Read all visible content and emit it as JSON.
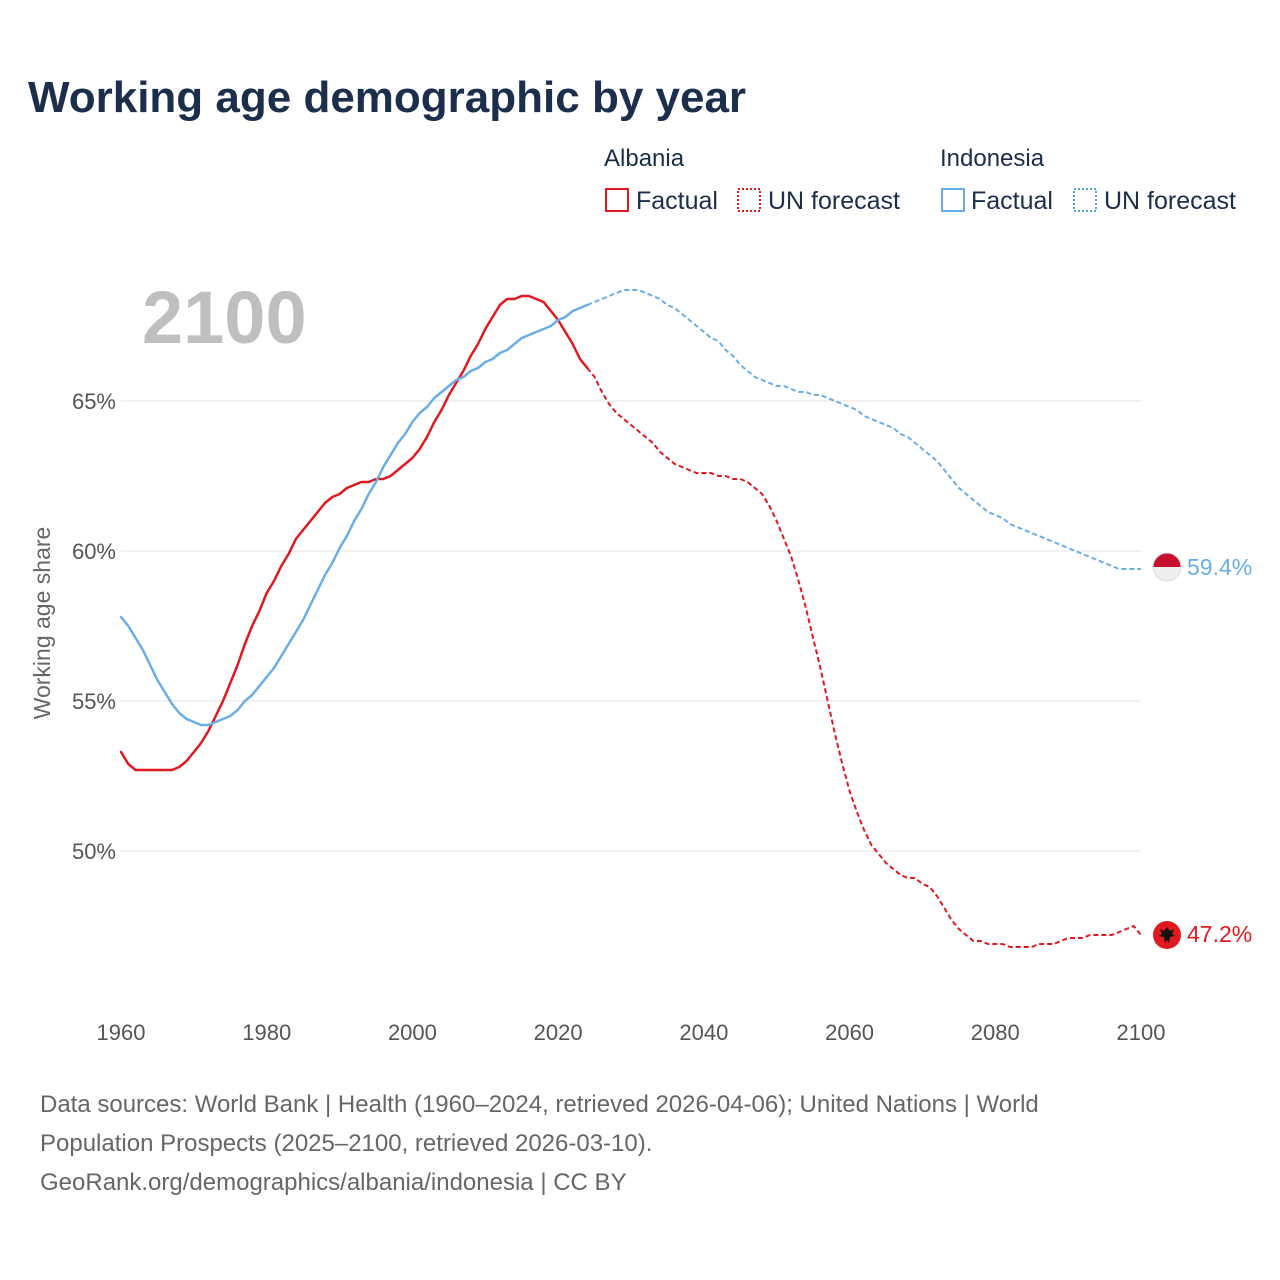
{
  "chart_data": {
    "type": "line",
    "title": "Working age demographic by year",
    "year_label": "2100",
    "xlabel": "",
    "ylabel": "Working age share",
    "xlim": [
      1960,
      2100
    ],
    "ylim": [
      45,
      70
    ],
    "x_ticks": [
      1960,
      1980,
      2000,
      2020,
      2040,
      2060,
      2080,
      2100
    ],
    "x_tick_labels": [
      "1960",
      "1980",
      "2000",
      "2020",
      "2040",
      "2060",
      "2080",
      "2100"
    ],
    "y_ticks": [
      50,
      55,
      60,
      65
    ],
    "y_tick_labels": [
      "50%",
      "55%",
      "60%",
      "65%"
    ],
    "legend": {
      "groups": [
        {
          "name": "Albania",
          "entries": [
            {
              "label": "Factual",
              "style": "solid"
            },
            {
              "label": "UN forecast",
              "style": "dotted"
            }
          ]
        },
        {
          "name": "Indonesia",
          "entries": [
            {
              "label": "Factual",
              "style": "solid"
            },
            {
              "label": "UN forecast",
              "style": "dotted"
            }
          ]
        }
      ]
    },
    "series": [
      {
        "name": "Albania",
        "color": "#e0191f",
        "end_label": "47.2%",
        "factual": {
          "x": [
            1960,
            1961,
            1962,
            1963,
            1964,
            1965,
            1966,
            1967,
            1968,
            1969,
            1970,
            1971,
            1972,
            1973,
            1974,
            1975,
            1976,
            1977,
            1978,
            1979,
            1980,
            1981,
            1982,
            1983,
            1984,
            1985,
            1986,
            1987,
            1988,
            1989,
            1990,
            1991,
            1992,
            1993,
            1994,
            1995,
            1996,
            1997,
            1998,
            1999,
            2000,
            2001,
            2002,
            2003,
            2004,
            2005,
            2006,
            2007,
            2008,
            2009,
            2010,
            2011,
            2012,
            2013,
            2014,
            2015,
            2016,
            2017,
            2018,
            2019,
            2020,
            2021,
            2022,
            2023,
            2024
          ],
          "y": [
            53.3,
            52.9,
            52.7,
            52.7,
            52.7,
            52.7,
            52.7,
            52.7,
            52.8,
            53.0,
            53.3,
            53.6,
            54.0,
            54.5,
            55.0,
            55.6,
            56.2,
            56.9,
            57.5,
            58.0,
            58.6,
            59.0,
            59.5,
            59.9,
            60.4,
            60.7,
            61.0,
            61.3,
            61.6,
            61.8,
            61.9,
            62.1,
            62.2,
            62.3,
            62.3,
            62.4,
            62.4,
            62.5,
            62.7,
            62.9,
            63.1,
            63.4,
            63.8,
            64.3,
            64.7,
            65.2,
            65.6,
            66.0,
            66.5,
            66.9,
            67.4,
            67.8,
            68.2,
            68.4,
            68.4,
            68.5,
            68.5,
            68.4,
            68.3,
            68.0,
            67.7,
            67.3,
            66.9,
            66.4,
            66.1
          ]
        },
        "forecast": {
          "x": [
            2024,
            2025,
            2026,
            2027,
            2028,
            2029,
            2030,
            2031,
            2032,
            2033,
            2034,
            2035,
            2036,
            2037,
            2038,
            2039,
            2040,
            2041,
            2042,
            2043,
            2044,
            2045,
            2046,
            2047,
            2048,
            2049,
            2050,
            2051,
            2052,
            2053,
            2054,
            2055,
            2056,
            2057,
            2058,
            2059,
            2060,
            2061,
            2062,
            2063,
            2064,
            2065,
            2066,
            2067,
            2068,
            2069,
            2070,
            2071,
            2072,
            2073,
            2074,
            2075,
            2076,
            2077,
            2078,
            2079,
            2080,
            2081,
            2082,
            2083,
            2084,
            2085,
            2086,
            2087,
            2088,
            2089,
            2090,
            2091,
            2092,
            2093,
            2094,
            2095,
            2096,
            2097,
            2098,
            2099,
            2100
          ],
          "y": [
            66.1,
            65.8,
            65.3,
            64.9,
            64.6,
            64.4,
            64.2,
            64.0,
            63.8,
            63.6,
            63.3,
            63.1,
            62.9,
            62.8,
            62.7,
            62.6,
            62.6,
            62.6,
            62.5,
            62.5,
            62.4,
            62.4,
            62.3,
            62.1,
            61.9,
            61.5,
            61.0,
            60.4,
            59.8,
            59.0,
            58.1,
            57.1,
            56.1,
            55.0,
            53.9,
            52.9,
            52.0,
            51.3,
            50.7,
            50.2,
            49.9,
            49.6,
            49.4,
            49.2,
            49.1,
            49.1,
            48.9,
            48.8,
            48.5,
            48.1,
            47.7,
            47.4,
            47.2,
            47.0,
            47.0,
            46.9,
            46.9,
            46.9,
            46.8,
            46.8,
            46.8,
            46.8,
            46.9,
            46.9,
            46.9,
            47.0,
            47.1,
            47.1,
            47.1,
            47.2,
            47.2,
            47.2,
            47.2,
            47.3,
            47.4,
            47.5,
            47.2
          ]
        }
      },
      {
        "name": "Indonesia",
        "color": "#6aaee6",
        "end_label": "59.4%",
        "factual": {
          "x": [
            1960,
            1961,
            1962,
            1963,
            1964,
            1965,
            1966,
            1967,
            1968,
            1969,
            1970,
            1971,
            1972,
            1973,
            1974,
            1975,
            1976,
            1977,
            1978,
            1979,
            1980,
            1981,
            1982,
            1983,
            1984,
            1985,
            1986,
            1987,
            1988,
            1989,
            1990,
            1991,
            1992,
            1993,
            1994,
            1995,
            1996,
            1997,
            1998,
            1999,
            2000,
            2001,
            2002,
            2003,
            2004,
            2005,
            2006,
            2007,
            2008,
            2009,
            2010,
            2011,
            2012,
            2013,
            2014,
            2015,
            2016,
            2017,
            2018,
            2019,
            2020,
            2021,
            2022,
            2023,
            2024
          ],
          "y": [
            57.8,
            57.5,
            57.1,
            56.7,
            56.2,
            55.7,
            55.3,
            54.9,
            54.6,
            54.4,
            54.3,
            54.2,
            54.2,
            54.3,
            54.4,
            54.5,
            54.7,
            55.0,
            55.2,
            55.5,
            55.8,
            56.1,
            56.5,
            56.9,
            57.3,
            57.7,
            58.2,
            58.7,
            59.2,
            59.6,
            60.1,
            60.5,
            61.0,
            61.4,
            61.9,
            62.3,
            62.8,
            63.2,
            63.6,
            63.9,
            64.3,
            64.6,
            64.8,
            65.1,
            65.3,
            65.5,
            65.7,
            65.8,
            66.0,
            66.1,
            66.3,
            66.4,
            66.6,
            66.7,
            66.9,
            67.1,
            67.2,
            67.3,
            67.4,
            67.5,
            67.7,
            67.8,
            68.0,
            68.1,
            68.2
          ]
        },
        "forecast": {
          "x": [
            2024,
            2025,
            2026,
            2027,
            2028,
            2029,
            2030,
            2031,
            2032,
            2033,
            2034,
            2035,
            2036,
            2037,
            2038,
            2039,
            2040,
            2041,
            2042,
            2043,
            2044,
            2045,
            2046,
            2047,
            2048,
            2049,
            2050,
            2051,
            2052,
            2053,
            2054,
            2055,
            2056,
            2057,
            2058,
            2059,
            2060,
            2061,
            2062,
            2063,
            2064,
            2065,
            2066,
            2067,
            2068,
            2069,
            2070,
            2071,
            2072,
            2073,
            2074,
            2075,
            2076,
            2077,
            2078,
            2079,
            2080,
            2081,
            2082,
            2083,
            2084,
            2085,
            2086,
            2087,
            2088,
            2089,
            2090,
            2091,
            2092,
            2093,
            2094,
            2095,
            2096,
            2097,
            2098,
            2099,
            2100
          ],
          "y": [
            68.2,
            68.3,
            68.4,
            68.5,
            68.6,
            68.7,
            68.7,
            68.7,
            68.6,
            68.5,
            68.4,
            68.2,
            68.1,
            67.9,
            67.7,
            67.5,
            67.3,
            67.1,
            67.0,
            66.7,
            66.5,
            66.2,
            66.0,
            65.8,
            65.7,
            65.6,
            65.5,
            65.5,
            65.4,
            65.3,
            65.3,
            65.2,
            65.2,
            65.1,
            65.0,
            64.9,
            64.8,
            64.7,
            64.5,
            64.4,
            64.3,
            64.2,
            64.1,
            63.9,
            63.8,
            63.6,
            63.4,
            63.2,
            63.0,
            62.7,
            62.4,
            62.1,
            61.9,
            61.7,
            61.5,
            61.3,
            61.2,
            61.1,
            60.9,
            60.8,
            60.7,
            60.6,
            60.5,
            60.4,
            60.3,
            60.2,
            60.1,
            60.0,
            59.9,
            59.8,
            59.7,
            59.6,
            59.5,
            59.4,
            59.4,
            59.4,
            59.4
          ]
        }
      }
    ]
  },
  "footer": {
    "line1": "Data sources: World Bank | Health (1960–2024, retrieved 2026-04-06); United Nations | World",
    "line2": "Population Prospects (2025–2100, retrieved 2026-03-10).",
    "line3": "GeoRank.org/demographics/albania/indonesia | CC BY"
  }
}
